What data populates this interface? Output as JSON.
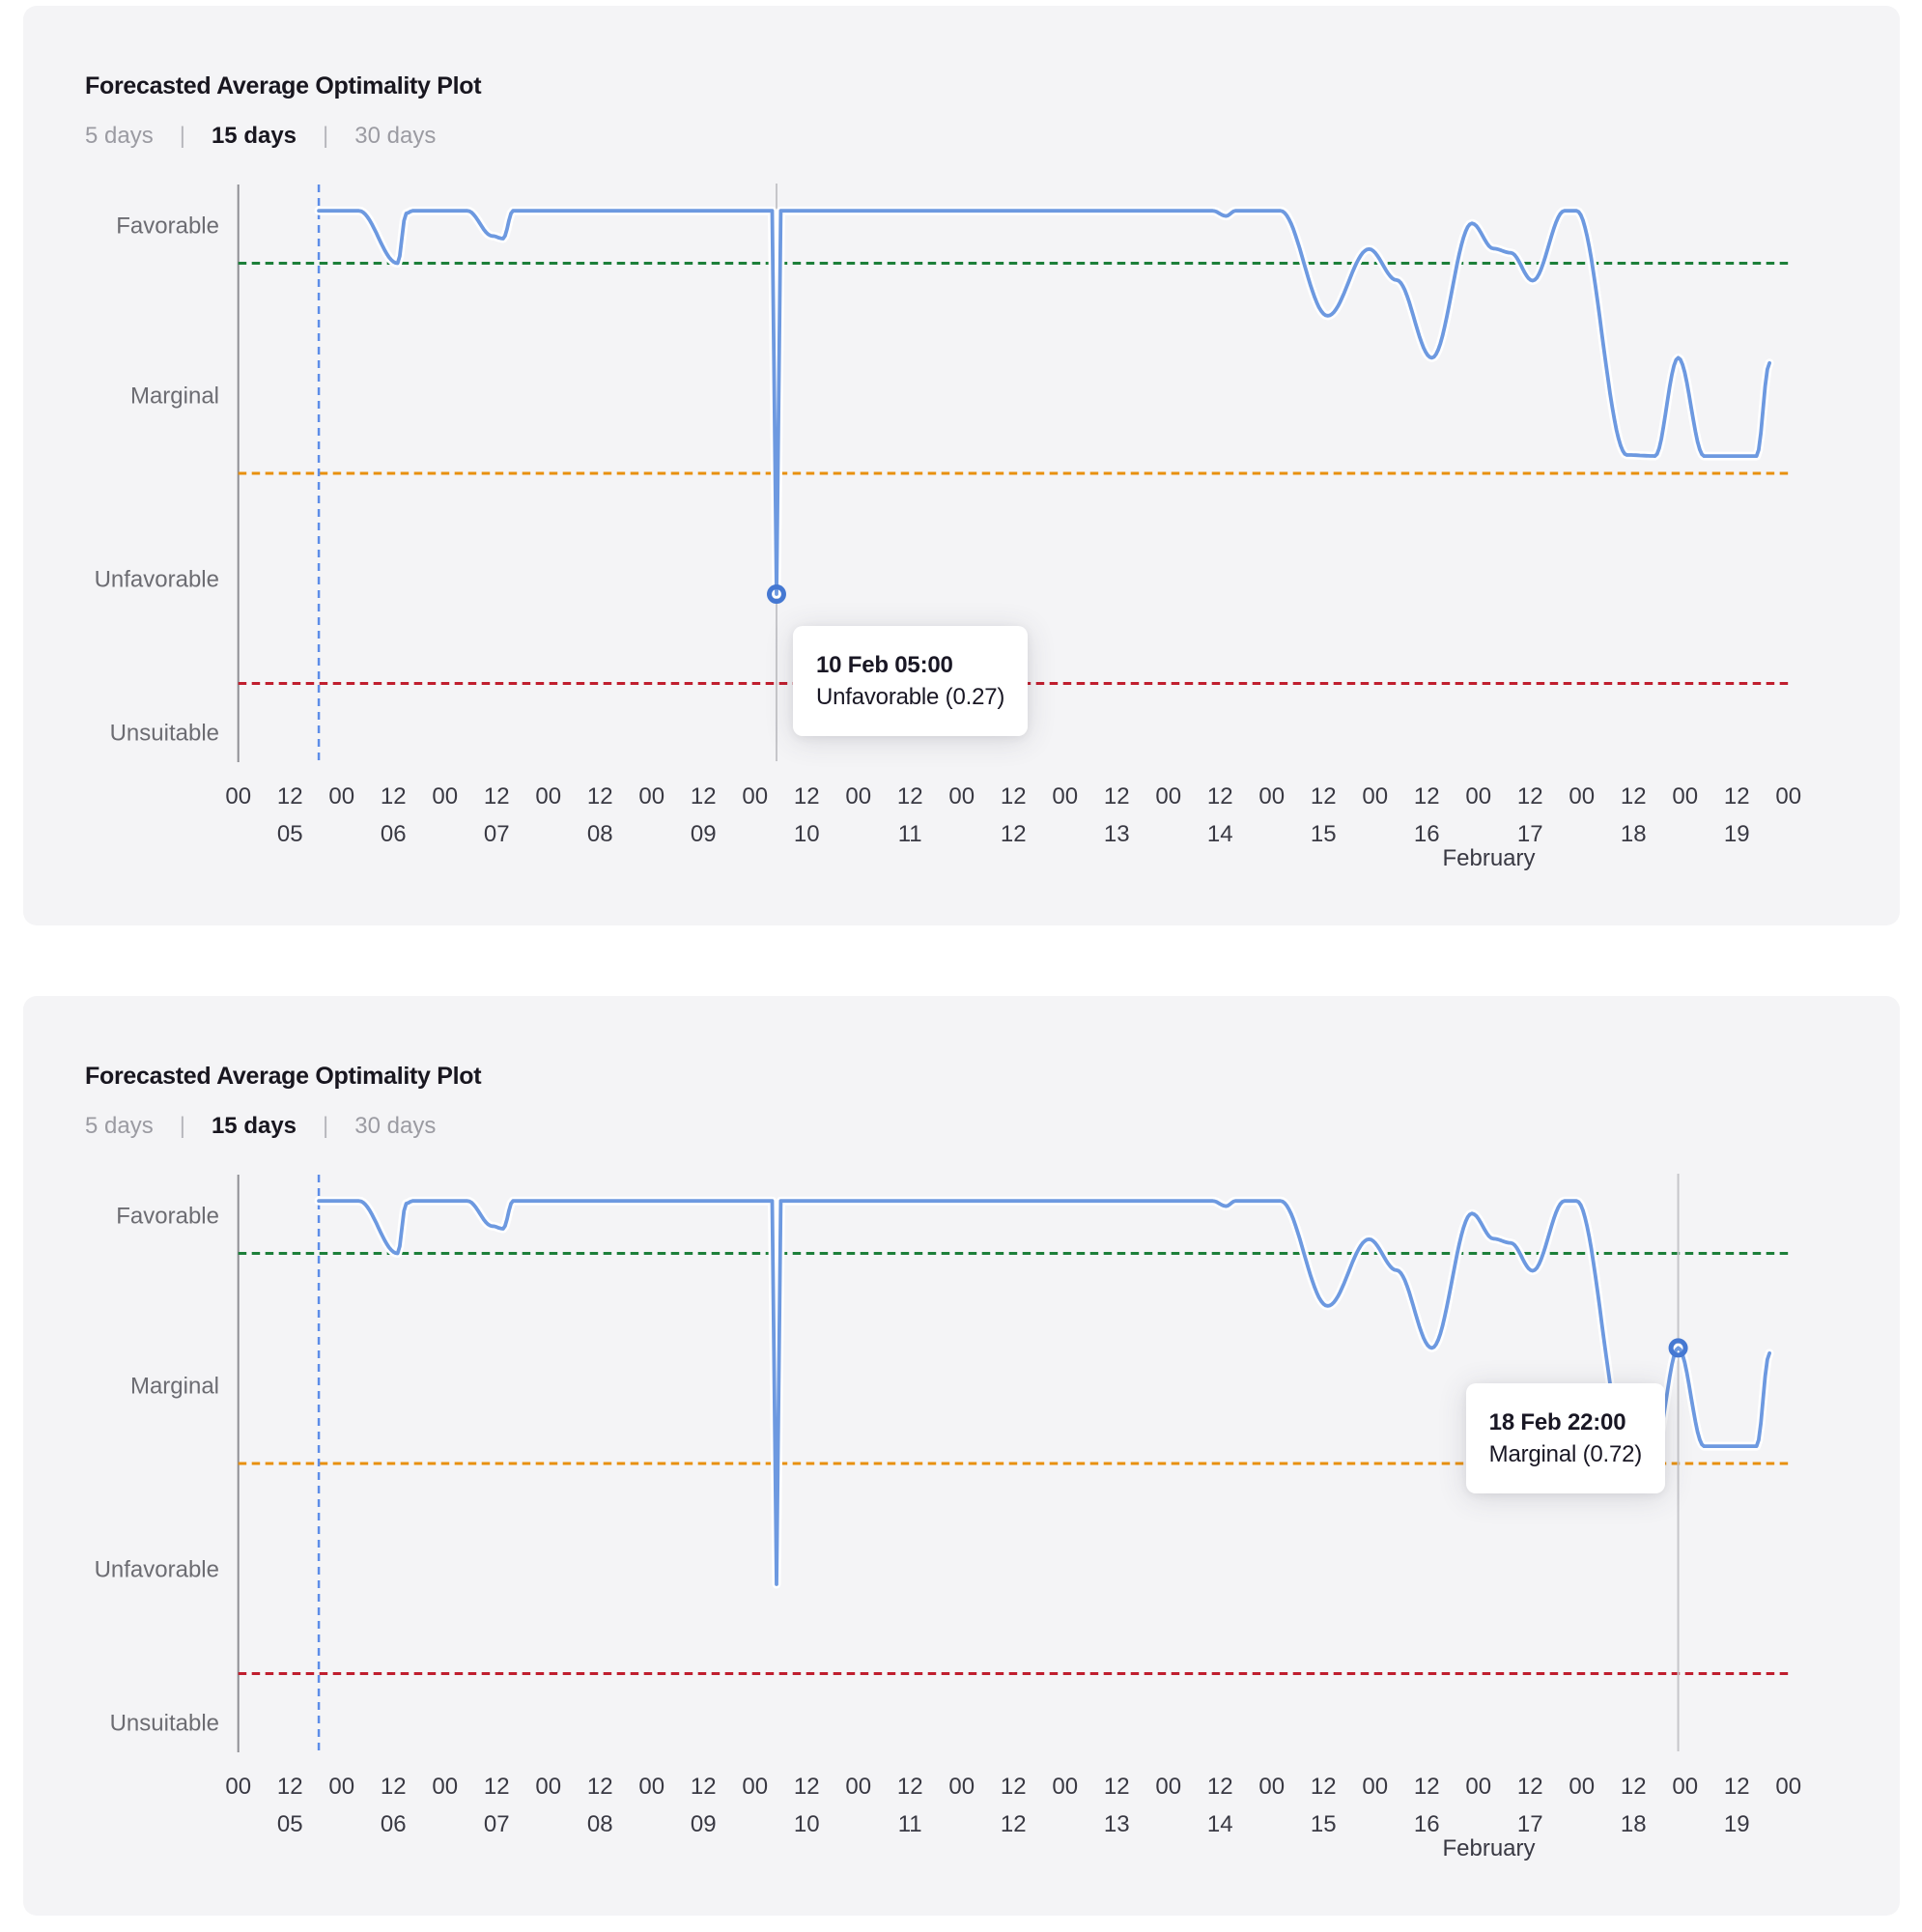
{
  "page": {
    "background": "#ffffff",
    "panel_background": "#f4f4f6"
  },
  "charts": [
    {
      "title": "Forecasted Average Optimality Plot",
      "tabs": [
        {
          "label": "5 days",
          "active": false
        },
        {
          "label": "15 days",
          "active": true
        },
        {
          "label": "30 days",
          "active": false
        }
      ],
      "tooltip": {
        "time": "10 Feb 05:00",
        "status": "Unfavorable (0.27)",
        "point_hours": 125,
        "point_value": 0.27,
        "box_side": "right"
      }
    },
    {
      "title": "Forecasted Average Optimality Plot",
      "tabs": [
        {
          "label": "5 days",
          "active": false
        },
        {
          "label": "15 days",
          "active": true
        },
        {
          "label": "30 days",
          "active": false
        }
      ],
      "tooltip": {
        "time": "18 Feb 22:00",
        "status": "Marginal (0.72)",
        "point_hours": 334.4,
        "point_value": 0.72,
        "box_side": "left"
      }
    }
  ],
  "chart_data": {
    "type": "line",
    "title": "Forecasted Average Optimality Plot",
    "x_axis": {
      "unit": "hours since 05 Feb 00:00",
      "range_hours": [
        0,
        360
      ],
      "tick_interval_hours": 12,
      "tick_labels": [
        "00",
        "12",
        "00",
        "12",
        "00",
        "12",
        "00",
        "12",
        "00",
        "12",
        "00",
        "12",
        "00",
        "12",
        "00",
        "12",
        "00",
        "12",
        "00",
        "12",
        "00",
        "12",
        "00",
        "12",
        "00",
        "12",
        "00",
        "12",
        "00",
        "12",
        "00"
      ],
      "day_labels": [
        "05",
        "06",
        "07",
        "08",
        "09",
        "10",
        "11",
        "12",
        "13",
        "14",
        "15",
        "16",
        "17",
        "18",
        "19"
      ],
      "month_label": "February"
    },
    "y_axis": {
      "range": [
        -0.05,
        1.05
      ],
      "category_labels": [
        "Favorable",
        "Marginal",
        "Unfavorable",
        "Unsuitable"
      ]
    },
    "thresholds": [
      {
        "name": "favorable-threshold",
        "value": 0.9,
        "color": "#1d7f3a"
      },
      {
        "name": "marginal-threshold",
        "value": 0.5,
        "color": "#e8900e"
      },
      {
        "name": "unsuitable-threshold",
        "value": 0.1,
        "color": "#c01e2e"
      }
    ],
    "now_marker_hours": 18.7,
    "now_marker_color": "#5d8de8",
    "series": [
      {
        "name": "Forecasted Average Optimality",
        "color": "#6d99e0",
        "points_hours_value": [
          [
            18.7,
            1.0
          ],
          [
            28,
            1.0
          ],
          [
            37,
            0.9
          ],
          [
            39,
            0.995
          ],
          [
            40.5,
            1.0
          ],
          [
            53.2,
            1.0
          ],
          [
            59,
            0.952
          ],
          [
            61.5,
            0.947
          ],
          [
            63.8,
            1.0
          ],
          [
            124,
            1.0
          ],
          [
            125,
            0.27
          ],
          [
            126,
            1.0
          ],
          [
            226.3,
            1.0
          ],
          [
            229.4,
            0.99
          ],
          [
            231.6,
            1.0
          ],
          [
            242,
            1.0
          ],
          [
            253,
            0.8
          ],
          [
            262.6,
            0.927
          ],
          [
            269,
            0.868
          ],
          [
            277.2,
            0.72
          ],
          [
            286.5,
            0.976
          ],
          [
            291.5,
            0.928
          ],
          [
            295.5,
            0.92
          ],
          [
            300.6,
            0.867
          ],
          [
            308,
            1.0
          ],
          [
            310.8,
            1.0
          ],
          [
            322.5,
            0.535
          ],
          [
            329,
            0.533
          ],
          [
            334.4,
            0.72
          ],
          [
            340.4,
            0.533
          ],
          [
            352.6,
            0.533
          ],
          [
            355.6,
            0.71
          ]
        ]
      }
    ]
  }
}
